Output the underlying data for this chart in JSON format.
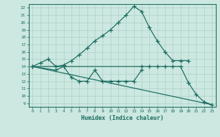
{
  "xlabel": "Humidex (Indice chaleur)",
  "xlim": [
    -0.5,
    23.5
  ],
  "ylim": [
    8.5,
    22.5
  ],
  "xticks": [
    0,
    1,
    2,
    3,
    4,
    5,
    6,
    7,
    8,
    9,
    10,
    11,
    12,
    13,
    14,
    15,
    16,
    17,
    18,
    19,
    20,
    21,
    22,
    23
  ],
  "yticks": [
    9,
    10,
    11,
    12,
    13,
    14,
    15,
    16,
    17,
    18,
    19,
    20,
    21,
    22
  ],
  "bg_color": "#cce8e0",
  "line_color": "#1a6b60",
  "grid_color": "#aacfc8",
  "line1_x": [
    0,
    1,
    2,
    3,
    4,
    5,
    6,
    7,
    8,
    9,
    10,
    11,
    12,
    13,
    14,
    15,
    16,
    17,
    18,
    19,
    20
  ],
  "line1_y": [
    14.0,
    14.5,
    15.0,
    14.0,
    14.2,
    14.8,
    15.6,
    16.5,
    17.5,
    18.2,
    19.0,
    20.0,
    21.0,
    22.2,
    21.5,
    19.3,
    17.5,
    16.0,
    14.8,
    14.8,
    14.8
  ],
  "line2_x": [
    0,
    3,
    4,
    5,
    6,
    7,
    8,
    9,
    10,
    11,
    12,
    13,
    14
  ],
  "line2_y": [
    14.0,
    13.5,
    14.0,
    12.5,
    12.0,
    12.0,
    13.5,
    12.0,
    12.0,
    12.0,
    12.0,
    12.0,
    13.5
  ],
  "line3_x": [
    0,
    14,
    15,
    16,
    17,
    18,
    19,
    20,
    21,
    22,
    23
  ],
  "line3_y": [
    14.0,
    14.0,
    14.0,
    14.0,
    14.0,
    14.0,
    14.0,
    11.8,
    10.2,
    9.2,
    8.8
  ],
  "line4_x": [
    0,
    23
  ],
  "line4_y": [
    14.0,
    8.8
  ],
  "marker": "+",
  "marker_size": 4,
  "linewidth": 0.9
}
